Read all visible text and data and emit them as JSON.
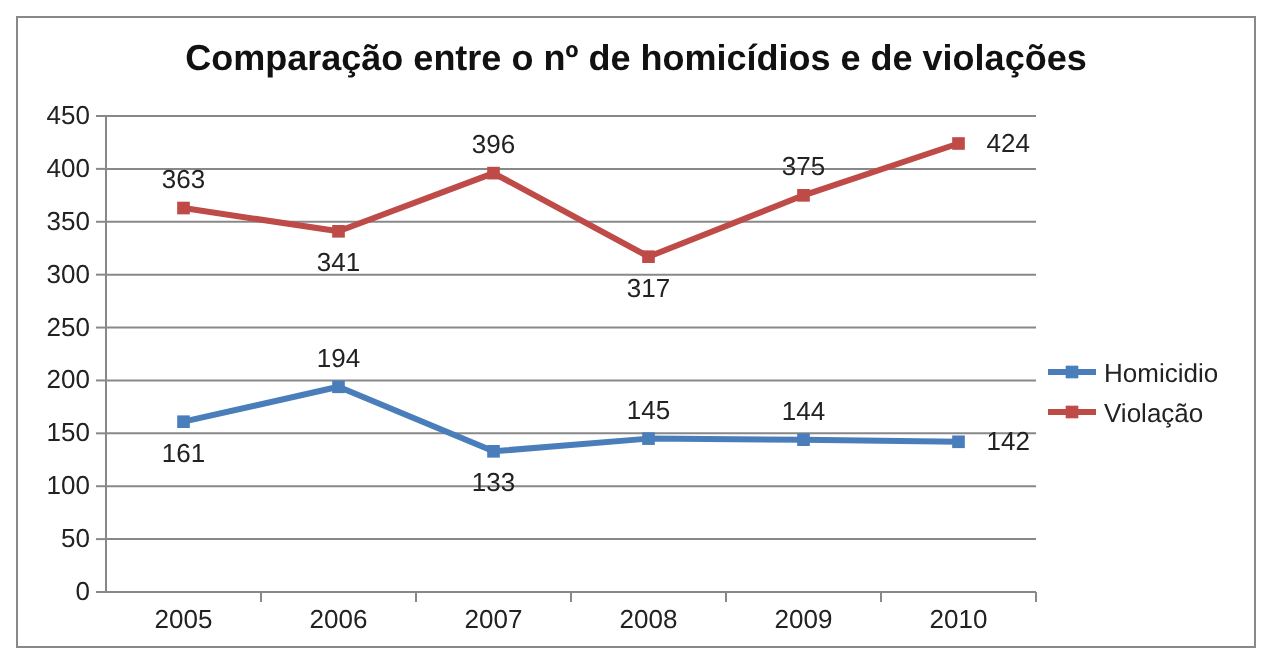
{
  "chart_data": {
    "type": "line",
    "title": "Comparação entre o nº de homicídios e de violações",
    "categories": [
      "2005",
      "2006",
      "2007",
      "2008",
      "2009",
      "2010"
    ],
    "series": [
      {
        "name": "Homicidio",
        "color": "#4a7ebb",
        "values": [
          161,
          194,
          133,
          145,
          144,
          142
        ]
      },
      {
        "name": "Violação",
        "color": "#be4b48",
        "values": [
          363,
          341,
          396,
          317,
          375,
          424
        ]
      }
    ],
    "ylim": [
      0,
      450
    ],
    "yticks": [
      0,
      50,
      100,
      150,
      200,
      250,
      300,
      350,
      400,
      450
    ],
    "grid": "y",
    "legend": "right",
    "marker": "square",
    "data_labels": true
  }
}
